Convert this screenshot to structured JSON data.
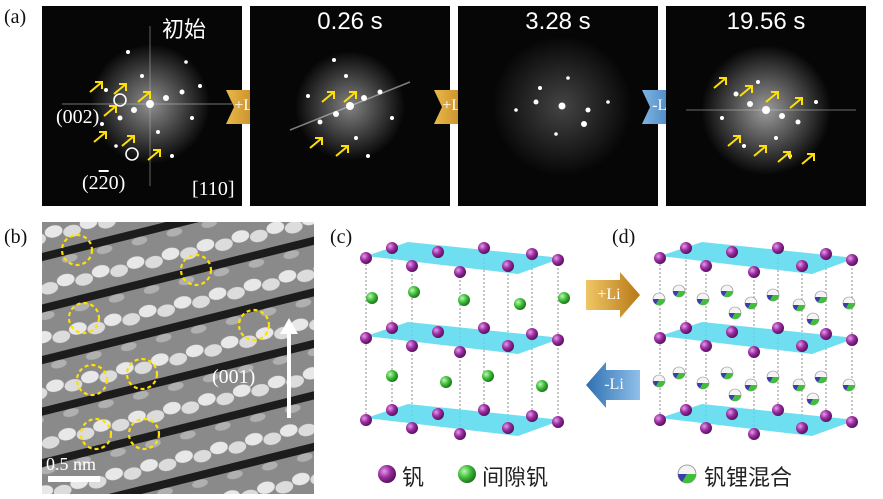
{
  "figure": {
    "panel_a": {
      "letter": "(a)",
      "frames": [
        {
          "time": "初始"
        },
        {
          "time": "0.26 s"
        },
        {
          "time": "3.28 s"
        },
        {
          "time": "19.56 s"
        }
      ],
      "arrows": [
        "+Li",
        "+Li",
        "-Li"
      ],
      "label_002": "(002)",
      "label_220_pre": "(2",
      "label_220_bar": "2",
      "label_220_post": "0)",
      "zone_axis": "[110]"
    },
    "panel_b": {
      "letter": "(b)",
      "direction_label": "(001)",
      "scale_bar": "0.5 nm"
    },
    "panel_c": {
      "letter": "(c)"
    },
    "panel_d": {
      "letter": "(d)"
    },
    "middle_arrows": {
      "forward": "+Li",
      "backward": "-Li"
    },
    "legend": {
      "vanadium": "钒",
      "interstitial_vanadium": "间隙钒",
      "mixed": "钒锂混合"
    },
    "colors": {
      "arrow_gold": "#c98a1e",
      "arrow_blue": "#3f86c6",
      "yellow_marker": "#ffe000",
      "vanadium_purple": "#9a2ca0",
      "lithium_green": "#3fbf3a",
      "plane_cyan": "#55d9ee"
    }
  }
}
